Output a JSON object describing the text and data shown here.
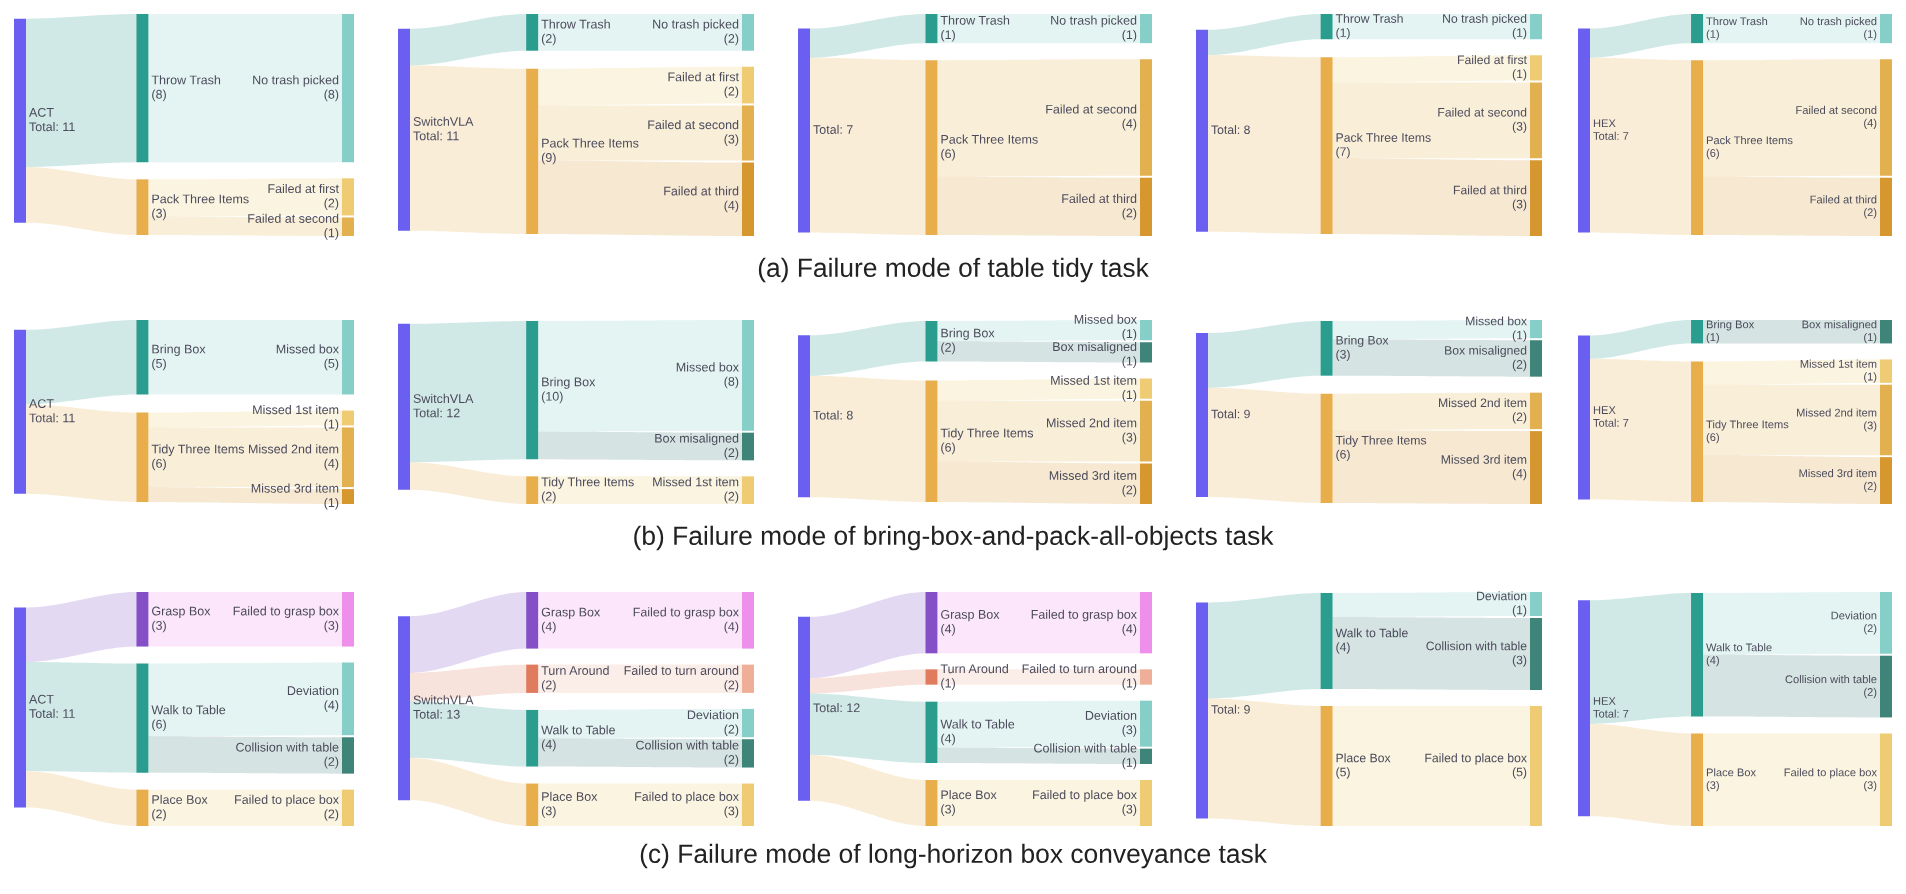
{
  "chart_data": [
    {
      "type": "other",
      "title": "ACT",
      "subtitle": "Total: 11",
      "color": "#6a5ff0",
      "categories": [
        "No trash picked",
        "Failed at first",
        "Failed at second"
      ],
      "series": [
        {
          "name": "Throw Trash",
          "color": "#2a9d8f",
          "values": [
            8,
            null,
            null
          ],
          "colors": [
            "#86cfc9",
            null,
            null
          ],
          "value_labels": [
            "(8)",
            null,
            null
          ]
        },
        {
          "name": "Pack Three Items",
          "color": "#e8ae4c",
          "values": [
            null,
            2,
            1
          ],
          "colors": [
            null,
            "#efcb73",
            "#e3b04f"
          ],
          "value_labels": [
            null,
            "(2)",
            "(1)"
          ]
        }
      ],
      "totals": [
        "(8)",
        "(3)"
      ]
    },
    {
      "type": "other",
      "title": "SwitchVLA",
      "subtitle": "Total: 11",
      "color": "#6a5ff0",
      "categories": [
        "No trash picked",
        "Failed at first",
        "Failed at second",
        "Failed at third"
      ],
      "series": [
        {
          "name": "Throw Trash",
          "color": "#2a9d8f",
          "values": [
            2,
            null,
            null,
            null
          ],
          "colors": [
            "#86cfc9",
            null,
            null,
            null
          ],
          "value_labels": [
            "(2)",
            null,
            null,
            null
          ]
        },
        {
          "name": "Pack Three Items",
          "color": "#e8ae4c",
          "values": [
            null,
            2,
            3,
            4
          ],
          "colors": [
            null,
            "#efcb73",
            "#e3b04f",
            "#d6972f"
          ],
          "value_labels": [
            null,
            "(2)",
            "(3)",
            "(4)"
          ]
        }
      ],
      "totals": [
        "(2)",
        "(9)"
      ]
    },
    {
      "type": "other",
      "subtitle": "Total: 7",
      "color": "#6a5ff0",
      "categories": [
        "No trash picked",
        "Failed at second",
        "Failed at third"
      ],
      "series": [
        {
          "name": "Throw Trash",
          "color": "#2a9d8f",
          "values": [
            1,
            null,
            null
          ],
          "colors": [
            "#86cfc9",
            null,
            null
          ],
          "value_labels": [
            "(1)",
            null,
            null
          ]
        },
        {
          "name": "Pack Three Items",
          "color": "#e8ae4c",
          "values": [
            null,
            4,
            2
          ],
          "colors": [
            null,
            "#e3b04f",
            "#d6972f"
          ],
          "value_labels": [
            null,
            "(4)",
            "(2)"
          ]
        }
      ],
      "totals": [
        "(1)",
        "(6)"
      ],
      "annotations": [
        "(a) Failure mode of table tidy task"
      ]
    },
    {
      "type": "other",
      "subtitle": "Total: 8",
      "color": "#6a5ff0",
      "categories": [
        "No trash picked",
        "Failed at first",
        "Failed at second",
        "Failed at third"
      ],
      "series": [
        {
          "name": "Throw Trash",
          "color": "#2a9d8f",
          "values": [
            1,
            null,
            null,
            null
          ],
          "colors": [
            "#86cfc9",
            null,
            null,
            null
          ],
          "value_labels": [
            "(1)",
            null,
            null,
            null
          ]
        },
        {
          "name": "Pack Three Items",
          "color": "#e8ae4c",
          "values": [
            null,
            1,
            3,
            3
          ],
          "colors": [
            null,
            "#efcb73",
            "#e3b04f",
            "#d6972f"
          ],
          "value_labels": [
            null,
            "(1)",
            "(3)",
            "(3)"
          ]
        }
      ],
      "totals": [
        "(1)",
        "(7)"
      ]
    },
    {
      "type": "other",
      "title": "HEX",
      "subtitle": "Total: 7",
      "color": "#6a5ff0",
      "categories": [
        "No trash picked",
        "Failed at second",
        "Failed at third"
      ],
      "series": [
        {
          "name": "Throw Trash",
          "color": "#2a9d8f",
          "values": [
            1,
            null,
            null
          ],
          "colors": [
            "#86cfc9",
            null,
            null
          ],
          "value_labels": [
            "(1)",
            null,
            null
          ]
        },
        {
          "name": "Pack Three Items",
          "color": "#e8ae4c",
          "values": [
            null,
            4,
            2
          ],
          "colors": [
            null,
            "#e3b04f",
            "#d6972f"
          ],
          "value_labels": [
            null,
            "(4)",
            "(2)"
          ]
        }
      ],
      "totals": [
        "(1)",
        "(6)"
      ]
    },
    {
      "type": "other",
      "title": "ACT",
      "subtitle": "Total: 11",
      "color": "#6a5ff0",
      "categories": [
        "Missed box",
        "Missed 1st item",
        "Missed 2nd item",
        "Missed 3rd item"
      ],
      "series": [
        {
          "name": "Bring Box",
          "color": "#2a9d8f",
          "values": [
            5,
            null,
            null,
            null
          ],
          "colors": [
            "#86cfc9",
            null,
            null,
            null
          ],
          "value_labels": [
            "(5)",
            null,
            null,
            null
          ]
        },
        {
          "name": "Tidy Three Items",
          "color": "#e8ae4c",
          "values": [
            null,
            1,
            4,
            1
          ],
          "colors": [
            null,
            "#efcb73",
            "#e3b04f",
            "#d6972f"
          ],
          "value_labels": [
            null,
            "(1)",
            "(4)",
            "(1)"
          ]
        }
      ],
      "totals": [
        "(5)",
        "(6)"
      ]
    },
    {
      "type": "other",
      "title": "SwitchVLA",
      "subtitle": "Total: 12",
      "color": "#6a5ff0",
      "categories": [
        "Missed box",
        "Box misaligned",
        "Missed 1st item"
      ],
      "series": [
        {
          "name": "Bring Box",
          "color": "#2a9d8f",
          "values": [
            8,
            2,
            null
          ],
          "colors": [
            "#86cfc9",
            "#3f8479",
            null
          ],
          "value_labels": [
            "(8)",
            "(2)",
            null
          ]
        },
        {
          "name": "Tidy Three Items",
          "color": "#e8ae4c",
          "values": [
            null,
            null,
            2
          ],
          "colors": [
            null,
            null,
            "#efcb73"
          ],
          "value_labels": [
            null,
            null,
            "(2)"
          ]
        }
      ],
      "totals": [
        "(10)",
        "(2)"
      ]
    },
    {
      "type": "other",
      "subtitle": "Total: 8",
      "color": "#6a5ff0",
      "categories": [
        "Missed box",
        "Box misaligned",
        "Missed 1st item",
        "Missed 2nd item",
        "Missed 3rd item"
      ],
      "series": [
        {
          "name": "Bring Box",
          "color": "#2a9d8f",
          "values": [
            1,
            1,
            null,
            null,
            null
          ],
          "colors": [
            "#86cfc9",
            "#3f8479",
            null,
            null,
            null
          ],
          "value_labels": [
            "(1)",
            "(1)",
            null,
            null,
            null
          ]
        },
        {
          "name": "Tidy Three Items",
          "color": "#e8ae4c",
          "values": [
            null,
            null,
            1,
            3,
            2
          ],
          "colors": [
            null,
            null,
            "#efcb73",
            "#e3b04f",
            "#d6972f"
          ],
          "value_labels": [
            null,
            null,
            "(1)",
            "(3)",
            "(2)"
          ]
        }
      ],
      "totals": [
        "(2)",
        "(6)"
      ],
      "annotations": [
        "(b) Failure mode of bring-box-and-pack-all-objects task"
      ]
    },
    {
      "type": "other",
      "subtitle": "Total: 9",
      "color": "#6a5ff0",
      "categories": [
        "Missed box",
        "Box misaligned",
        "Missed 2nd item",
        "Missed 3rd item"
      ],
      "series": [
        {
          "name": "Bring Box",
          "color": "#2a9d8f",
          "values": [
            1,
            2,
            null,
            null
          ],
          "colors": [
            "#86cfc9",
            "#3f8479",
            null,
            null
          ],
          "value_labels": [
            "(1)",
            "(2)",
            null,
            null
          ]
        },
        {
          "name": "Tidy Three Items",
          "color": "#e8ae4c",
          "values": [
            null,
            null,
            2,
            4
          ],
          "colors": [
            null,
            null,
            "#e3b04f",
            "#d6972f"
          ],
          "value_labels": [
            null,
            null,
            "(2)",
            "(4)"
          ]
        }
      ],
      "totals": [
        "(3)",
        "(6)"
      ]
    },
    {
      "type": "other",
      "title": "HEX",
      "subtitle": "Total: 7",
      "color": "#6a5ff0",
      "categories": [
        "Box misaligned",
        "Missed 1st item",
        "Missed 2nd item",
        "Missed 3rd item"
      ],
      "series": [
        {
          "name": "Bring Box",
          "color": "#2a9d8f",
          "values": [
            1,
            null,
            null,
            null
          ],
          "colors": [
            "#3f8479",
            null,
            null,
            null
          ],
          "value_labels": [
            "(1)",
            null,
            null,
            null
          ]
        },
        {
          "name": "Tidy Three Items",
          "color": "#e8ae4c",
          "values": [
            null,
            1,
            3,
            2
          ],
          "colors": [
            null,
            "#efcb73",
            "#e3b04f",
            "#d6972f"
          ],
          "value_labels": [
            null,
            "(1)",
            "(3)",
            "(2)"
          ]
        }
      ],
      "totals": [
        "(1)",
        "(6)"
      ]
    },
    {
      "type": "other",
      "title": "ACT",
      "subtitle": "Total: 11",
      "color": "#6a5ff0",
      "categories": [
        "Failed to grasp box",
        "Deviation",
        "Collision with table",
        "Failed to place box"
      ],
      "series": [
        {
          "name": "Grasp Box",
          "color": "#8550c6",
          "values": [
            3,
            null,
            null,
            null
          ],
          "colors": [
            "#ee8fec",
            null,
            null,
            null
          ],
          "value_labels": [
            "(3)",
            null,
            null,
            null
          ]
        },
        {
          "name": "Walk to Table",
          "color": "#2a9d8f",
          "values": [
            null,
            4,
            2,
            null
          ],
          "colors": [
            null,
            "#86cfc9",
            "#3f8479",
            null
          ],
          "value_labels": [
            null,
            "(4)",
            "(2)",
            null
          ]
        },
        {
          "name": "Place Box",
          "color": "#e8ae4c",
          "values": [
            null,
            null,
            null,
            2
          ],
          "colors": [
            null,
            null,
            null,
            "#efcb73"
          ],
          "value_labels": [
            null,
            null,
            null,
            "(2)"
          ]
        }
      ],
      "totals": [
        "(3)",
        "(6)",
        "(2)"
      ]
    },
    {
      "type": "other",
      "title": "SwitchVLA",
      "subtitle": "Total: 13",
      "color": "#6a5ff0",
      "categories": [
        "Failed to grasp box",
        "Failed to turn around",
        "Deviation",
        "Collision with table",
        "Failed to place box"
      ],
      "series": [
        {
          "name": "Grasp Box",
          "color": "#8550c6",
          "values": [
            4,
            null,
            null,
            null,
            null
          ],
          "colors": [
            "#ee8fec",
            null,
            null,
            null,
            null
          ],
          "value_labels": [
            "(4)",
            null,
            null,
            null,
            null
          ]
        },
        {
          "name": "Turn Around",
          "color": "#e07b5e",
          "values": [
            null,
            2,
            null,
            null,
            null
          ],
          "colors": [
            null,
            "#efae98",
            null,
            null,
            null
          ],
          "value_labels": [
            null,
            "(2)",
            null,
            null,
            null
          ]
        },
        {
          "name": "Walk to Table",
          "color": "#2a9d8f",
          "values": [
            null,
            null,
            2,
            2,
            null
          ],
          "colors": [
            null,
            null,
            "#86cfc9",
            "#3f8479",
            null
          ],
          "value_labels": [
            null,
            null,
            "(2)",
            "(2)",
            null
          ]
        },
        {
          "name": "Place Box",
          "color": "#e8ae4c",
          "values": [
            null,
            null,
            null,
            null,
            3
          ],
          "colors": [
            null,
            null,
            null,
            null,
            "#efcb73"
          ],
          "value_labels": [
            null,
            null,
            null,
            null,
            "(3)"
          ]
        }
      ],
      "totals": [
        "(4)",
        "(2)",
        "(4)",
        "(3)"
      ]
    },
    {
      "type": "other",
      "subtitle": "Total: 12",
      "color": "#6a5ff0",
      "categories": [
        "Failed to grasp box",
        "Failed to turn around",
        "Deviation",
        "Collision with table",
        "Failed to place box"
      ],
      "series": [
        {
          "name": "Grasp Box",
          "color": "#8550c6",
          "values": [
            4,
            null,
            null,
            null,
            null
          ],
          "colors": [
            "#ee8fec",
            null,
            null,
            null,
            null
          ],
          "value_labels": [
            "(4)",
            null,
            null,
            null,
            null
          ]
        },
        {
          "name": "Turn Around",
          "color": "#e07b5e",
          "values": [
            null,
            1,
            null,
            null,
            null
          ],
          "colors": [
            null,
            "#efae98",
            null,
            null,
            null
          ],
          "value_labels": [
            null,
            "(1)",
            null,
            null,
            null
          ]
        },
        {
          "name": "Walk to Table",
          "color": "#2a9d8f",
          "values": [
            null,
            null,
            3,
            1,
            null
          ],
          "colors": [
            null,
            null,
            "#86cfc9",
            "#3f8479",
            null
          ],
          "value_labels": [
            null,
            null,
            "(3)",
            "(1)",
            null
          ]
        },
        {
          "name": "Place Box",
          "color": "#e8ae4c",
          "values": [
            null,
            null,
            null,
            null,
            3
          ],
          "colors": [
            null,
            null,
            null,
            null,
            "#efcb73"
          ],
          "value_labels": [
            null,
            null,
            null,
            null,
            "(3)"
          ]
        }
      ],
      "totals": [
        "(4)",
        "(1)",
        "(4)",
        "(3)"
      ],
      "annotations": [
        "(c) Failure mode of long-horizon box conveyance task"
      ]
    },
    {
      "type": "other",
      "subtitle": "Total: 9",
      "color": "#6a5ff0",
      "categories": [
        "Deviation",
        "Collision with table",
        "Failed to place box"
      ],
      "series": [
        {
          "name": "Walk to Table",
          "color": "#2a9d8f",
          "values": [
            1,
            3,
            null
          ],
          "colors": [
            "#86cfc9",
            "#3f8479",
            null
          ],
          "value_labels": [
            "(1)",
            "(3)",
            null
          ]
        },
        {
          "name": "Place Box",
          "color": "#e8ae4c",
          "values": [
            null,
            null,
            5
          ],
          "colors": [
            null,
            null,
            "#efcb73"
          ],
          "value_labels": [
            null,
            null,
            "(5)"
          ]
        }
      ],
      "totals": [
        "(4)",
        "(5)"
      ]
    },
    {
      "type": "other",
      "title": "HEX",
      "subtitle": "Total: 7",
      "color": "#6a5ff0",
      "categories": [
        "Deviation",
        "Collision with table",
        "Failed to place box"
      ],
      "series": [
        {
          "name": "Walk to Table",
          "color": "#2a9d8f",
          "values": [
            2,
            2,
            null
          ],
          "colors": [
            "#86cfc9",
            "#3f8479",
            null
          ],
          "value_labels": [
            "(2)",
            "(2)",
            null
          ]
        },
        {
          "name": "Place Box",
          "color": "#e8ae4c",
          "values": [
            null,
            null,
            3
          ],
          "colors": [
            null,
            null,
            "#efcb73"
          ],
          "value_labels": [
            null,
            null,
            "(3)"
          ]
        }
      ],
      "totals": [
        "(4)",
        "(3)"
      ]
    }
  ]
}
